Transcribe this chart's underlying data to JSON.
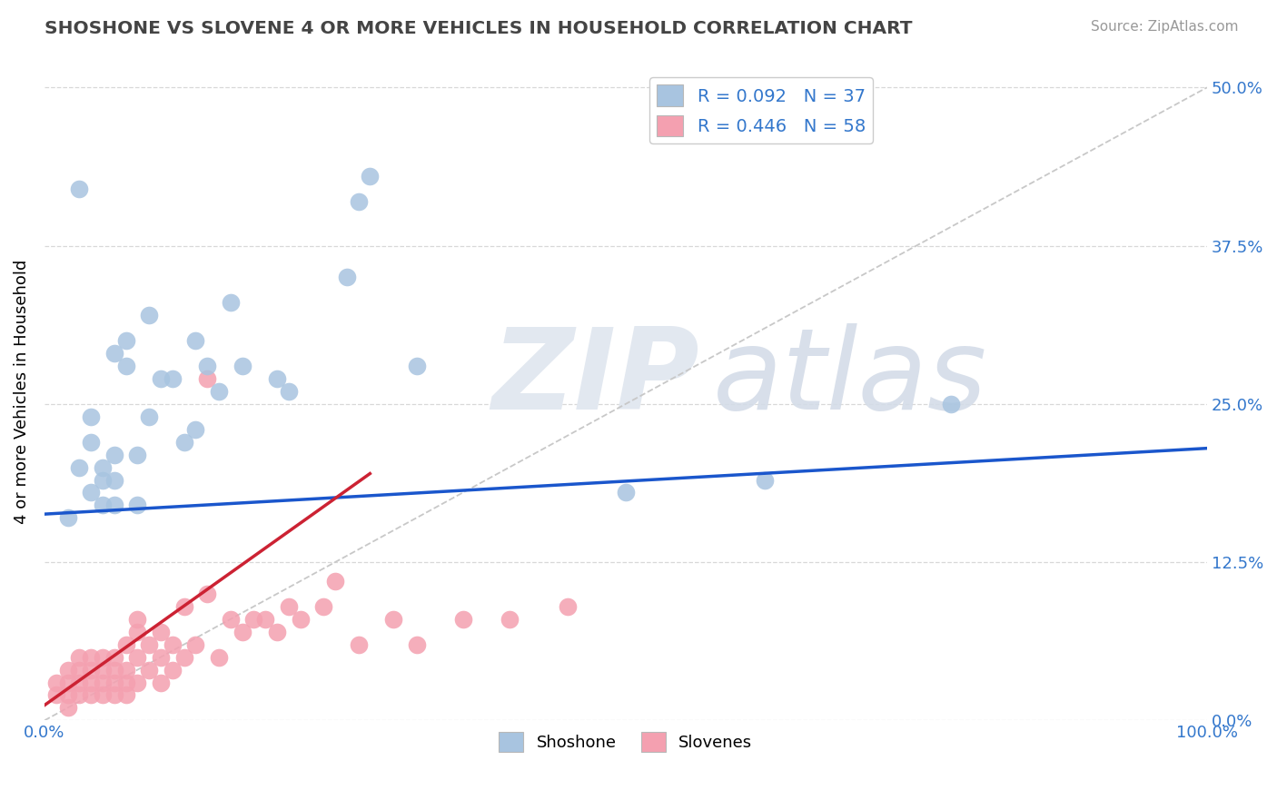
{
  "title": "SHOSHONE VS SLOVENE 4 OR MORE VEHICLES IN HOUSEHOLD CORRELATION CHART",
  "source_text": "Source: ZipAtlas.com",
  "ylabel": "4 or more Vehicles in Household",
  "xlim": [
    0.0,
    1.0
  ],
  "ylim": [
    0.0,
    0.52
  ],
  "ytick_values": [
    0.0,
    0.125,
    0.25,
    0.375,
    0.5
  ],
  "shoshone_color": "#a8c4e0",
  "slovene_color": "#f4a0b0",
  "shoshone_R": 0.092,
  "shoshone_N": 37,
  "slovene_R": 0.446,
  "slovene_N": 58,
  "legend_color": "#3377cc",
  "shoshone_line_color": "#1a56cc",
  "slovene_line_color": "#cc2233",
  "diagonal_line_color": "#c8c8c8",
  "grid_color": "#d8d8d8",
  "shoshone_x": [
    0.02,
    0.03,
    0.04,
    0.04,
    0.05,
    0.05,
    0.06,
    0.06,
    0.06,
    0.07,
    0.07,
    0.08,
    0.08,
    0.09,
    0.1,
    0.11,
    0.12,
    0.13,
    0.14,
    0.15,
    0.16,
    0.17,
    0.2,
    0.21,
    0.27,
    0.28,
    0.32,
    0.5,
    0.62,
    0.78,
    0.03,
    0.04,
    0.05,
    0.06,
    0.09,
    0.13,
    0.26
  ],
  "shoshone_y": [
    0.16,
    0.2,
    0.18,
    0.22,
    0.17,
    0.19,
    0.17,
    0.19,
    0.21,
    0.28,
    0.3,
    0.17,
    0.21,
    0.24,
    0.27,
    0.27,
    0.22,
    0.23,
    0.28,
    0.26,
    0.33,
    0.28,
    0.27,
    0.26,
    0.41,
    0.43,
    0.28,
    0.18,
    0.19,
    0.25,
    0.42,
    0.24,
    0.2,
    0.29,
    0.32,
    0.3,
    0.35
  ],
  "slovene_x": [
    0.01,
    0.01,
    0.02,
    0.02,
    0.02,
    0.02,
    0.03,
    0.03,
    0.03,
    0.03,
    0.04,
    0.04,
    0.04,
    0.04,
    0.05,
    0.05,
    0.05,
    0.05,
    0.06,
    0.06,
    0.06,
    0.06,
    0.07,
    0.07,
    0.07,
    0.07,
    0.08,
    0.08,
    0.08,
    0.08,
    0.09,
    0.09,
    0.1,
    0.1,
    0.1,
    0.11,
    0.11,
    0.12,
    0.12,
    0.13,
    0.14,
    0.15,
    0.16,
    0.17,
    0.18,
    0.19,
    0.2,
    0.21,
    0.14,
    0.22,
    0.24,
    0.25,
    0.27,
    0.3,
    0.32,
    0.36,
    0.4,
    0.45
  ],
  "slovene_y": [
    0.02,
    0.03,
    0.01,
    0.02,
    0.03,
    0.04,
    0.02,
    0.03,
    0.04,
    0.05,
    0.02,
    0.03,
    0.04,
    0.05,
    0.02,
    0.03,
    0.04,
    0.05,
    0.02,
    0.03,
    0.04,
    0.05,
    0.02,
    0.03,
    0.04,
    0.06,
    0.03,
    0.05,
    0.07,
    0.08,
    0.04,
    0.06,
    0.03,
    0.05,
    0.07,
    0.04,
    0.06,
    0.05,
    0.09,
    0.06,
    0.27,
    0.05,
    0.08,
    0.07,
    0.08,
    0.08,
    0.07,
    0.09,
    0.1,
    0.08,
    0.09,
    0.11,
    0.06,
    0.08,
    0.06,
    0.08,
    0.08,
    0.09
  ],
  "shoshone_line_x": [
    0.0,
    1.0
  ],
  "shoshone_line_y": [
    0.163,
    0.215
  ],
  "slovene_line_x": [
    0.0,
    0.28
  ],
  "slovene_line_y": [
    0.012,
    0.195
  ]
}
